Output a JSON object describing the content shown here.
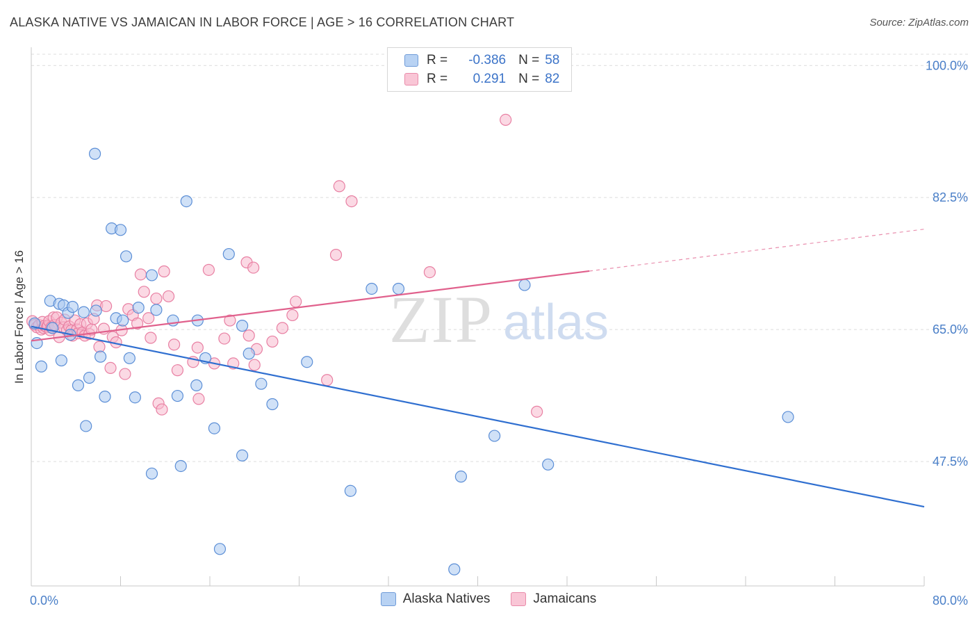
{
  "header": {
    "title": "ALASKA NATIVE VS JAMAICAN IN LABOR FORCE | AGE > 16 CORRELATION CHART",
    "source": "Source: ZipAtlas.com"
  },
  "watermark": {
    "zip": "ZIP",
    "atlas": "atlas"
  },
  "legend_top": {
    "rows": [
      {
        "r_label": "R =",
        "r_value": "-0.386",
        "n_label": "N =",
        "n_value": "58"
      },
      {
        "r_label": "R =",
        "r_value": "0.291",
        "n_label": "N =",
        "n_value": "82"
      }
    ]
  },
  "legend_bottom": {
    "items": [
      "Alaska Natives",
      "Jamaicans"
    ]
  },
  "colors": {
    "alaska_fill": "#a9c8f0",
    "alaska_stroke": "#5b8ed6",
    "alaska_line": "#2f6fd0",
    "jamaican_fill": "#f7b9cd",
    "jamaican_stroke": "#e87fa2",
    "jamaican_line": "#e0608c",
    "tick_text": "#4a7fc8",
    "grid": "#dcdcdc"
  },
  "chart_data": {
    "type": "scatter",
    "title": "ALASKA NATIVE VS JAMAICAN IN LABOR FORCE | AGE > 16 CORRELATION CHART",
    "xlabel": "",
    "ylabel": "In Labor Force | Age > 16",
    "xlim": [
      0,
      80
    ],
    "ylim": [
      31,
      101.5
    ],
    "x_tick_labels": [
      {
        "value": 0,
        "label": "0.0%"
      },
      {
        "value": 80,
        "label": "80.0%"
      }
    ],
    "y_tick_labels": [
      {
        "value": 100,
        "label": "100.0%"
      },
      {
        "value": 82.5,
        "label": "82.5%"
      },
      {
        "value": 65,
        "label": "65.0%"
      },
      {
        "value": 47.5,
        "label": "47.5%"
      }
    ],
    "grid": true,
    "legend_position": "top-center",
    "series": [
      {
        "name": "Alaska Natives",
        "stats": {
          "R": -0.386,
          "N": 58
        },
        "trend": {
          "x1": 0,
          "y1": 65.4,
          "x2": 80,
          "y2": 41.5,
          "dashed_from": null
        },
        "points": [
          [
            0.3,
            65.8
          ],
          [
            0.5,
            63.2
          ],
          [
            0.9,
            60.1
          ],
          [
            1.7,
            68.8
          ],
          [
            1.9,
            65.2
          ],
          [
            2.5,
            68.4
          ],
          [
            2.7,
            60.9
          ],
          [
            2.9,
            68.2
          ],
          [
            3.3,
            67.2
          ],
          [
            3.5,
            64.3
          ],
          [
            3.7,
            68.0
          ],
          [
            4.2,
            57.6
          ],
          [
            4.7,
            67.3
          ],
          [
            4.9,
            52.2
          ],
          [
            5.2,
            58.6
          ],
          [
            5.7,
            88.3
          ],
          [
            5.8,
            67.5
          ],
          [
            6.2,
            61.4
          ],
          [
            6.6,
            56.1
          ],
          [
            7.2,
            78.4
          ],
          [
            7.6,
            66.5
          ],
          [
            8.0,
            78.2
          ],
          [
            8.2,
            66.2
          ],
          [
            8.5,
            74.7
          ],
          [
            8.8,
            61.2
          ],
          [
            9.3,
            56.0
          ],
          [
            9.6,
            67.9
          ],
          [
            10.8,
            72.2
          ],
          [
            10.8,
            45.9
          ],
          [
            11.2,
            67.6
          ],
          [
            12.7,
            66.2
          ],
          [
            13.1,
            56.2
          ],
          [
            13.4,
            46.9
          ],
          [
            13.9,
            82.0
          ],
          [
            14.8,
            57.6
          ],
          [
            14.9,
            66.2
          ],
          [
            15.6,
            61.2
          ],
          [
            16.4,
            51.9
          ],
          [
            16.9,
            35.9
          ],
          [
            17.7,
            75.0
          ],
          [
            18.9,
            65.5
          ],
          [
            18.9,
            48.3
          ],
          [
            19.5,
            61.8
          ],
          [
            20.6,
            57.8
          ],
          [
            21.6,
            55.1
          ],
          [
            24.7,
            60.7
          ],
          [
            28.6,
            43.6
          ],
          [
            30.5,
            70.4
          ],
          [
            32.9,
            70.4
          ],
          [
            37.9,
            33.2
          ],
          [
            38.5,
            45.5
          ],
          [
            41.5,
            50.9
          ],
          [
            44.2,
            70.9
          ],
          [
            46.3,
            47.1
          ],
          [
            67.8,
            53.4
          ]
        ]
      },
      {
        "name": "Jamaicans",
        "stats": {
          "R": 0.291,
          "N": 82
        },
        "trend": {
          "x1": 0,
          "y1": 63.5,
          "x2": 80,
          "y2": 78.3,
          "dashed_from": 50
        },
        "points": [
          [
            0.1,
            66.1
          ],
          [
            0.3,
            65.6
          ],
          [
            0.5,
            65.3
          ],
          [
            0.7,
            65.6
          ],
          [
            0.9,
            65.0
          ],
          [
            1.0,
            66.0
          ],
          [
            1.1,
            65.2
          ],
          [
            1.2,
            65.5
          ],
          [
            1.4,
            65.3
          ],
          [
            1.5,
            65.5
          ],
          [
            1.6,
            66.1
          ],
          [
            1.7,
            64.9
          ],
          [
            1.8,
            65.3
          ],
          [
            2.0,
            66.6
          ],
          [
            2.1,
            65.6
          ],
          [
            2.3,
            66.6
          ],
          [
            2.5,
            64.0
          ],
          [
            2.7,
            65.9
          ],
          [
            2.9,
            65.3
          ],
          [
            3.0,
            66.3
          ],
          [
            3.2,
            64.9
          ],
          [
            3.4,
            65.4
          ],
          [
            3.6,
            64.9
          ],
          [
            3.7,
            64.2
          ],
          [
            3.9,
            66.2
          ],
          [
            4.1,
            65.0
          ],
          [
            4.2,
            64.5
          ],
          [
            4.4,
            65.7
          ],
          [
            4.6,
            64.6
          ],
          [
            4.8,
            64.2
          ],
          [
            5.0,
            65.8
          ],
          [
            5.2,
            64.4
          ],
          [
            5.4,
            65.0
          ],
          [
            5.6,
            66.4
          ],
          [
            5.9,
            68.2
          ],
          [
            6.1,
            62.7
          ],
          [
            6.5,
            65.1
          ],
          [
            6.7,
            68.1
          ],
          [
            7.1,
            59.9
          ],
          [
            7.3,
            64.0
          ],
          [
            7.6,
            63.3
          ],
          [
            8.1,
            64.9
          ],
          [
            8.4,
            59.1
          ],
          [
            8.7,
            67.7
          ],
          [
            9.1,
            66.9
          ],
          [
            9.5,
            65.8
          ],
          [
            9.8,
            72.3
          ],
          [
            10.1,
            70.0
          ],
          [
            10.5,
            66.5
          ],
          [
            10.7,
            63.9
          ],
          [
            11.2,
            69.1
          ],
          [
            11.4,
            55.2
          ],
          [
            11.7,
            54.4
          ],
          [
            11.9,
            72.7
          ],
          [
            12.3,
            69.4
          ],
          [
            12.8,
            63.0
          ],
          [
            13.1,
            59.6
          ],
          [
            14.5,
            60.7
          ],
          [
            14.9,
            62.6
          ],
          [
            15.0,
            55.8
          ],
          [
            15.9,
            72.9
          ],
          [
            16.4,
            60.5
          ],
          [
            17.3,
            63.8
          ],
          [
            17.8,
            66.2
          ],
          [
            18.1,
            60.5
          ],
          [
            19.3,
            73.9
          ],
          [
            19.5,
            64.2
          ],
          [
            19.9,
            73.2
          ],
          [
            20.0,
            60.3
          ],
          [
            20.2,
            62.4
          ],
          [
            21.6,
            63.4
          ],
          [
            22.5,
            65.2
          ],
          [
            23.4,
            66.9
          ],
          [
            23.7,
            68.7
          ],
          [
            26.5,
            58.3
          ],
          [
            27.3,
            74.9
          ],
          [
            27.6,
            84.0
          ],
          [
            28.7,
            82.0
          ],
          [
            35.7,
            72.6
          ],
          [
            42.5,
            92.8
          ],
          [
            45.3,
            54.1
          ]
        ]
      }
    ]
  }
}
